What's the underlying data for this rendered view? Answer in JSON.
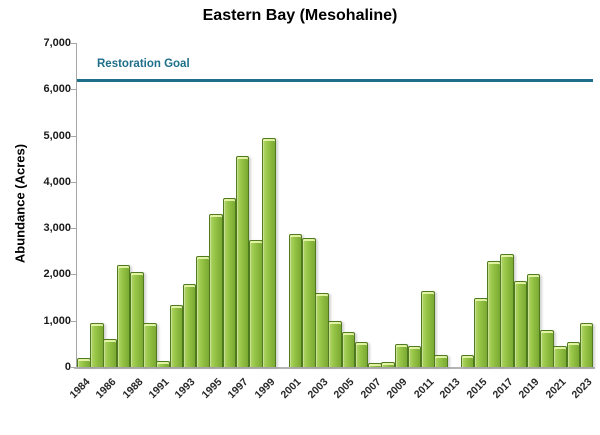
{
  "chart_data": {
    "type": "bar",
    "title": "Eastern Bay (Mesohaline)",
    "ylabel": "Abundance (Acres)",
    "xlabel": "",
    "ylim": [
      0,
      7000
    ],
    "ytick_step": 1000,
    "grid": false,
    "legend": "none",
    "categories": [
      1984,
      1985,
      1986,
      1987,
      1988,
      1989,
      1991,
      1992,
      1993,
      1994,
      1995,
      1996,
      1997,
      1998,
      1999,
      2000,
      2001,
      2002,
      2003,
      2004,
      2005,
      2006,
      2007,
      2008,
      2009,
      2010,
      2011,
      2012,
      2013,
      2014,
      2015,
      2016,
      2017,
      2018,
      2019,
      2020,
      2021,
      2022,
      2023
    ],
    "values": [
      200,
      950,
      600,
      2200,
      2050,
      950,
      130,
      1350,
      1800,
      2400,
      3300,
      3650,
      4550,
      2750,
      4950,
      null,
      2880,
      2780,
      1600,
      1000,
      750,
      550,
      80,
      100,
      500,
      450,
      1650,
      250,
      null,
      250,
      1500,
      2300,
      2450,
      1850,
      2000,
      800,
      450,
      550,
      950
    ],
    "x_tick_labels": [
      "1984",
      "1986",
      "1988",
      "1991",
      "1993",
      "1995",
      "1997",
      "1999",
      "2001",
      "2003",
      "2005",
      "2007",
      "2009",
      "2011",
      "2013",
      "2015",
      "2017",
      "2019",
      "2021",
      "2023"
    ],
    "y_tick_labels": [
      "0",
      "1,000",
      "2,000",
      "3,000",
      "4,000",
      "5,000",
      "6,000",
      "7,000"
    ],
    "goal_line": {
      "label": "Restoration Goal",
      "value": 6200,
      "color": "#1e6f8a"
    },
    "colors": {
      "bar_fill": "#96c546",
      "bar_fill_light": "#b3d569",
      "bar_fill_dark": "#7ba933",
      "bar_border": "#4f7a1e",
      "bar_top_highlight": "#e2efa8",
      "axis": "#a6a6a6",
      "text": "#000000",
      "goal": "#1e6f8a",
      "background": "#ffffff"
    }
  }
}
